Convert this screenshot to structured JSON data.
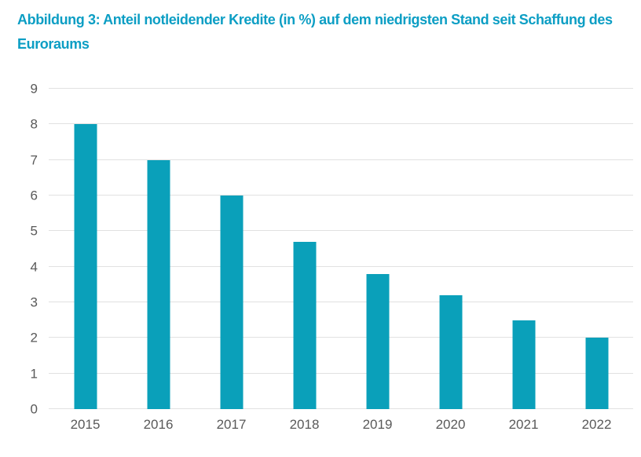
{
  "title": "Abbildung 3: Anteil notleidender Kredite (in %) auf dem niedrigsten Stand seit Schaffung des Euroraums",
  "colors": {
    "accent": "#0C9EC4",
    "bar": "#0AA0BA",
    "grid": "#E1E1E1",
    "axis_text": "#595959"
  },
  "chart_data": {
    "type": "bar",
    "categories": [
      "2015",
      "2016",
      "2017",
      "2018",
      "2019",
      "2020",
      "2021",
      "2022"
    ],
    "values": [
      8,
      7,
      6,
      4.7,
      3.8,
      3.2,
      2.5,
      2
    ],
    "title": "Abbildung 3: Anteil notleidender Kredite (in %) auf dem niedrigsten Stand seit Schaffung des Euroraums",
    "xlabel": "",
    "ylabel": "",
    "ylim": [
      0,
      9
    ],
    "yticks": [
      0,
      1,
      2,
      3,
      4,
      5,
      6,
      7,
      8,
      9
    ],
    "grid": true,
    "legend": "none"
  }
}
